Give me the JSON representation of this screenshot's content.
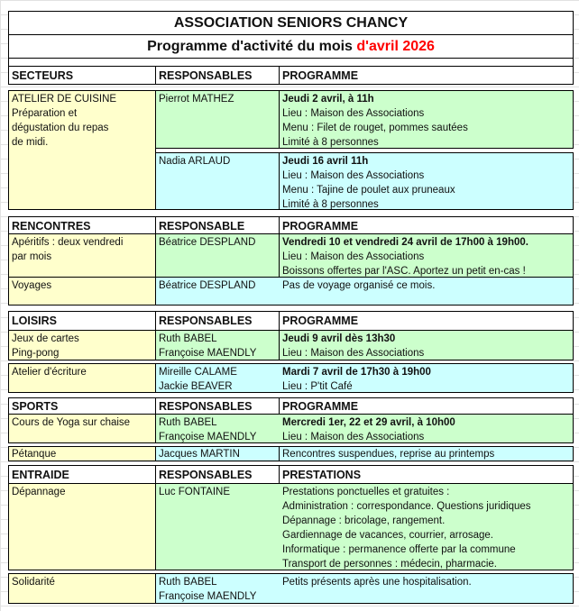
{
  "title": "ASSOCIATION SENIORS CHANCY",
  "subtitle": {
    "text": "Programme d'activité du mois ",
    "highlight": "d'avril 2026",
    "highlight_color": "#ff0000"
  },
  "colors": {
    "secteur": "#ffffcc",
    "green": "#ccffcc",
    "cyan": "#ccffff"
  },
  "header1": {
    "a": "SECTEURS",
    "b": "RESPONSABLES",
    "c": "PROGRAMME"
  },
  "cuisine": {
    "a": [
      "ATELIER DE CUISINE",
      "Préparation et",
      "dégustation du repas",
      "de midi."
    ],
    "r1": {
      "b": "Pierrot MATHEZ",
      "c": [
        "Jeudi 2 avril, à 11h",
        "Lieu : Maison des Associations",
        "Menu : Filet de rouget, pommes sautées",
        "Limité à 8 personnes"
      ]
    },
    "r2": {
      "b": "Nadia ARLAUD",
      "c": [
        "Jeudi 16 avril 11h",
        "Lieu : Maison des Associations",
        "Menu : Tajine de poulet aux pruneaux",
        "Limité à 8 personnes"
      ]
    }
  },
  "rencontres": {
    "header": {
      "a": "RENCONTRES",
      "b": "RESPONSABLE",
      "c": "PROGRAMME"
    },
    "r1": {
      "a": [
        "Apéritifs : deux vendredi",
        "par mois"
      ],
      "b": "Béatrice DESPLAND",
      "c": [
        "Vendredi 10 et vendredi 24 avril de 17h00 à 19h00.",
        "Lieu : Maison des Associations",
        "Boissons offertes par l'ASC. Aportez un petit en-cas !"
      ]
    },
    "r2": {
      "a": "Voyages",
      "b": "Béatrice DESPLAND",
      "c": "Pas de voyage organisé ce mois."
    }
  },
  "loisirs": {
    "header": {
      "a": "LOISIRS",
      "b": "RESPONSABLES",
      "c": "PROGRAMME"
    },
    "r1": {
      "a": [
        "Jeux de cartes",
        "Ping-pong"
      ],
      "b": [
        "Ruth BABEL",
        "Françoise MAENDLY"
      ],
      "c": [
        "Jeudi 9 avril dès 13h30",
        "Lieu : Maison des Associations"
      ]
    },
    "r2": {
      "a": "Atelier d'écriture",
      "b": [
        "Mireille CALAME",
        "Jackie BEAVER"
      ],
      "c": [
        "Mardi 7 avril de 17h30 à 19h00",
        "Lieu : P'tit Café"
      ]
    }
  },
  "sports": {
    "header": {
      "a": "SPORTS",
      "b": "RESPONSABLES",
      "c": "PROGRAMME"
    },
    "r1": {
      "a": "Cours de Yoga sur chaise",
      "b": [
        "Ruth BABEL",
        "Françoise MAENDLY"
      ],
      "c": [
        "Mercredi 1er, 22 et 29 avril,  à 10h00",
        "Lieu : Maison des Associations"
      ]
    },
    "r2": {
      "a": "Pétanque",
      "b": "Jacques MARTIN",
      "c": "Rencontres suspendues, reprise au printemps"
    }
  },
  "entraide": {
    "header": {
      "a": "ENTRAIDE",
      "b": "RESPONSABLES",
      "c": "PRESTATIONS"
    },
    "r1": {
      "a": "Dépannage",
      "b": "Luc FONTAINE",
      "c": [
        "Prestations ponctuelles et gratuites :",
        "Administration : correspondance. Questions juridiques",
        "Dépannage : bricolage, rangement.",
        "Gardiennage de vacances, courrier, arrosage.",
        "Informatique : permanence offerte par la commune",
        "Transport de personnes : médecin, pharmacie."
      ]
    },
    "r2": {
      "a": "Solidarité",
      "b": [
        "Ruth BABEL",
        "Françoise MAENDLY"
      ],
      "c": "Petits présents après une hospitalisation."
    }
  }
}
